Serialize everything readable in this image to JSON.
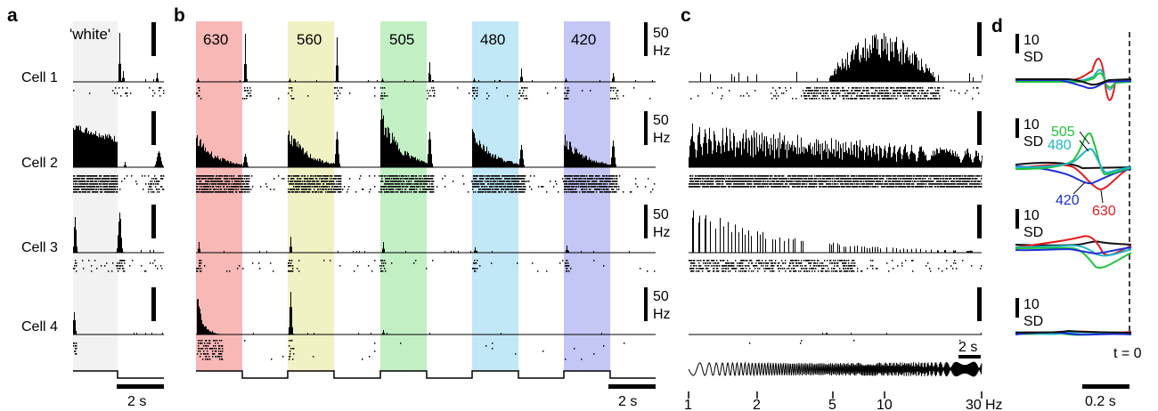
{
  "panels": {
    "a": {
      "letter": "a",
      "white_label": "'white'",
      "scalebar_time": "2 s",
      "band_color": "#f2f2f2"
    },
    "b": {
      "letter": "b",
      "wavelengths": [
        {
          "label": "630",
          "color": "#f7b8b6"
        },
        {
          "label": "560",
          "color": "#f0f2c4"
        },
        {
          "label": "505",
          "color": "#c2f0c4"
        },
        {
          "label": "480",
          "color": "#c2e7f7"
        },
        {
          "label": "420",
          "color": "#c4c6f5"
        }
      ],
      "scalebar_time": "2 s"
    },
    "c": {
      "letter": "c",
      "scalebar_time": "2 s",
      "freq_ticks": [
        "1",
        "2",
        "5",
        "10",
        "30"
      ],
      "freq_unit": "Hz"
    },
    "d": {
      "letter": "d",
      "time_zero_label": "t = 0",
      "scalebar_time": "0.2 s",
      "kernel_labels": {
        "k505": "505",
        "k480": "480",
        "k420": "420",
        "k630": "630"
      },
      "trace_colors": {
        "red": "#e31a1c",
        "green": "#1fc43a",
        "cyan": "#1fb5c9",
        "blue": "#1f2fd6",
        "black": "#111111"
      }
    }
  },
  "cells": [
    {
      "label": "Cell 1"
    },
    {
      "label": "Cell 2"
    },
    {
      "label": "Cell 3"
    },
    {
      "label": "Cell 4"
    }
  ],
  "rate_scalebar": {
    "value": "50",
    "unit": "Hz"
  },
  "kernel_scalebar": {
    "value": "10",
    "unit": "SD"
  }
}
